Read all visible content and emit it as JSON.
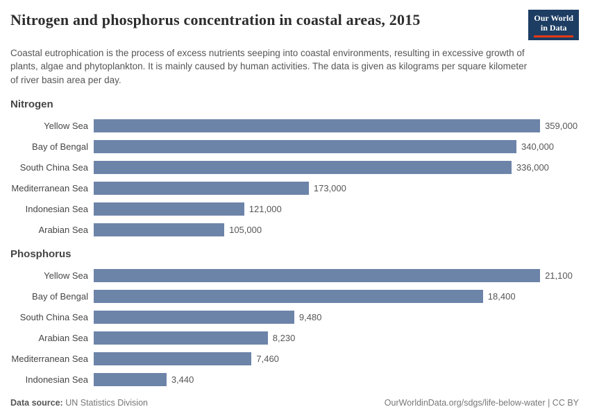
{
  "header": {
    "title": "Nitrogen and phosphorus concentration in coastal areas, 2015",
    "subtitle": "Coastal eutrophication is the process of excess nutrients seeping into coastal environments, resulting in excessive growth of plants, algae and phytoplankton. It is mainly caused by human activities. The data is given as kilograms per square kilometer of river basin area per day.",
    "logo": {
      "line1": "Our World",
      "line2": "in Data"
    }
  },
  "chart_data": [
    {
      "type": "bar",
      "orientation": "horizontal",
      "title": "Nitrogen",
      "categories": [
        "Yellow Sea",
        "Bay of Bengal",
        "South China Sea",
        "Mediterranean Sea",
        "Indonesian Sea",
        "Arabian Sea"
      ],
      "values": [
        359000,
        340000,
        336000,
        173000,
        121000,
        105000
      ],
      "value_labels": [
        "359,000",
        "340,000",
        "336,000",
        "173,000",
        "121,000",
        "105,000"
      ],
      "xlim": [
        0,
        359000
      ],
      "grid": false,
      "legend": "none"
    },
    {
      "type": "bar",
      "orientation": "horizontal",
      "title": "Phosphorus",
      "categories": [
        "Yellow Sea",
        "Bay of Bengal",
        "South China Sea",
        "Arabian Sea",
        "Mediterranean Sea",
        "Indonesian Sea"
      ],
      "values": [
        21100,
        18400,
        9480,
        8230,
        7460,
        3440
      ],
      "value_labels": [
        "21,100",
        "18,400",
        "9,480",
        "8,230",
        "7,460",
        "3,440"
      ],
      "xlim": [
        0,
        21100
      ],
      "grid": false,
      "legend": "none"
    }
  ],
  "footer": {
    "source_label": "Data source:",
    "source": "UN Statistics Division",
    "attribution": "OurWorldinData.org/sdgs/life-below-water | CC BY"
  },
  "colors": {
    "bar": "#6d84a9",
    "logo_navy": "#1d3d63",
    "logo_red": "#e63912"
  }
}
